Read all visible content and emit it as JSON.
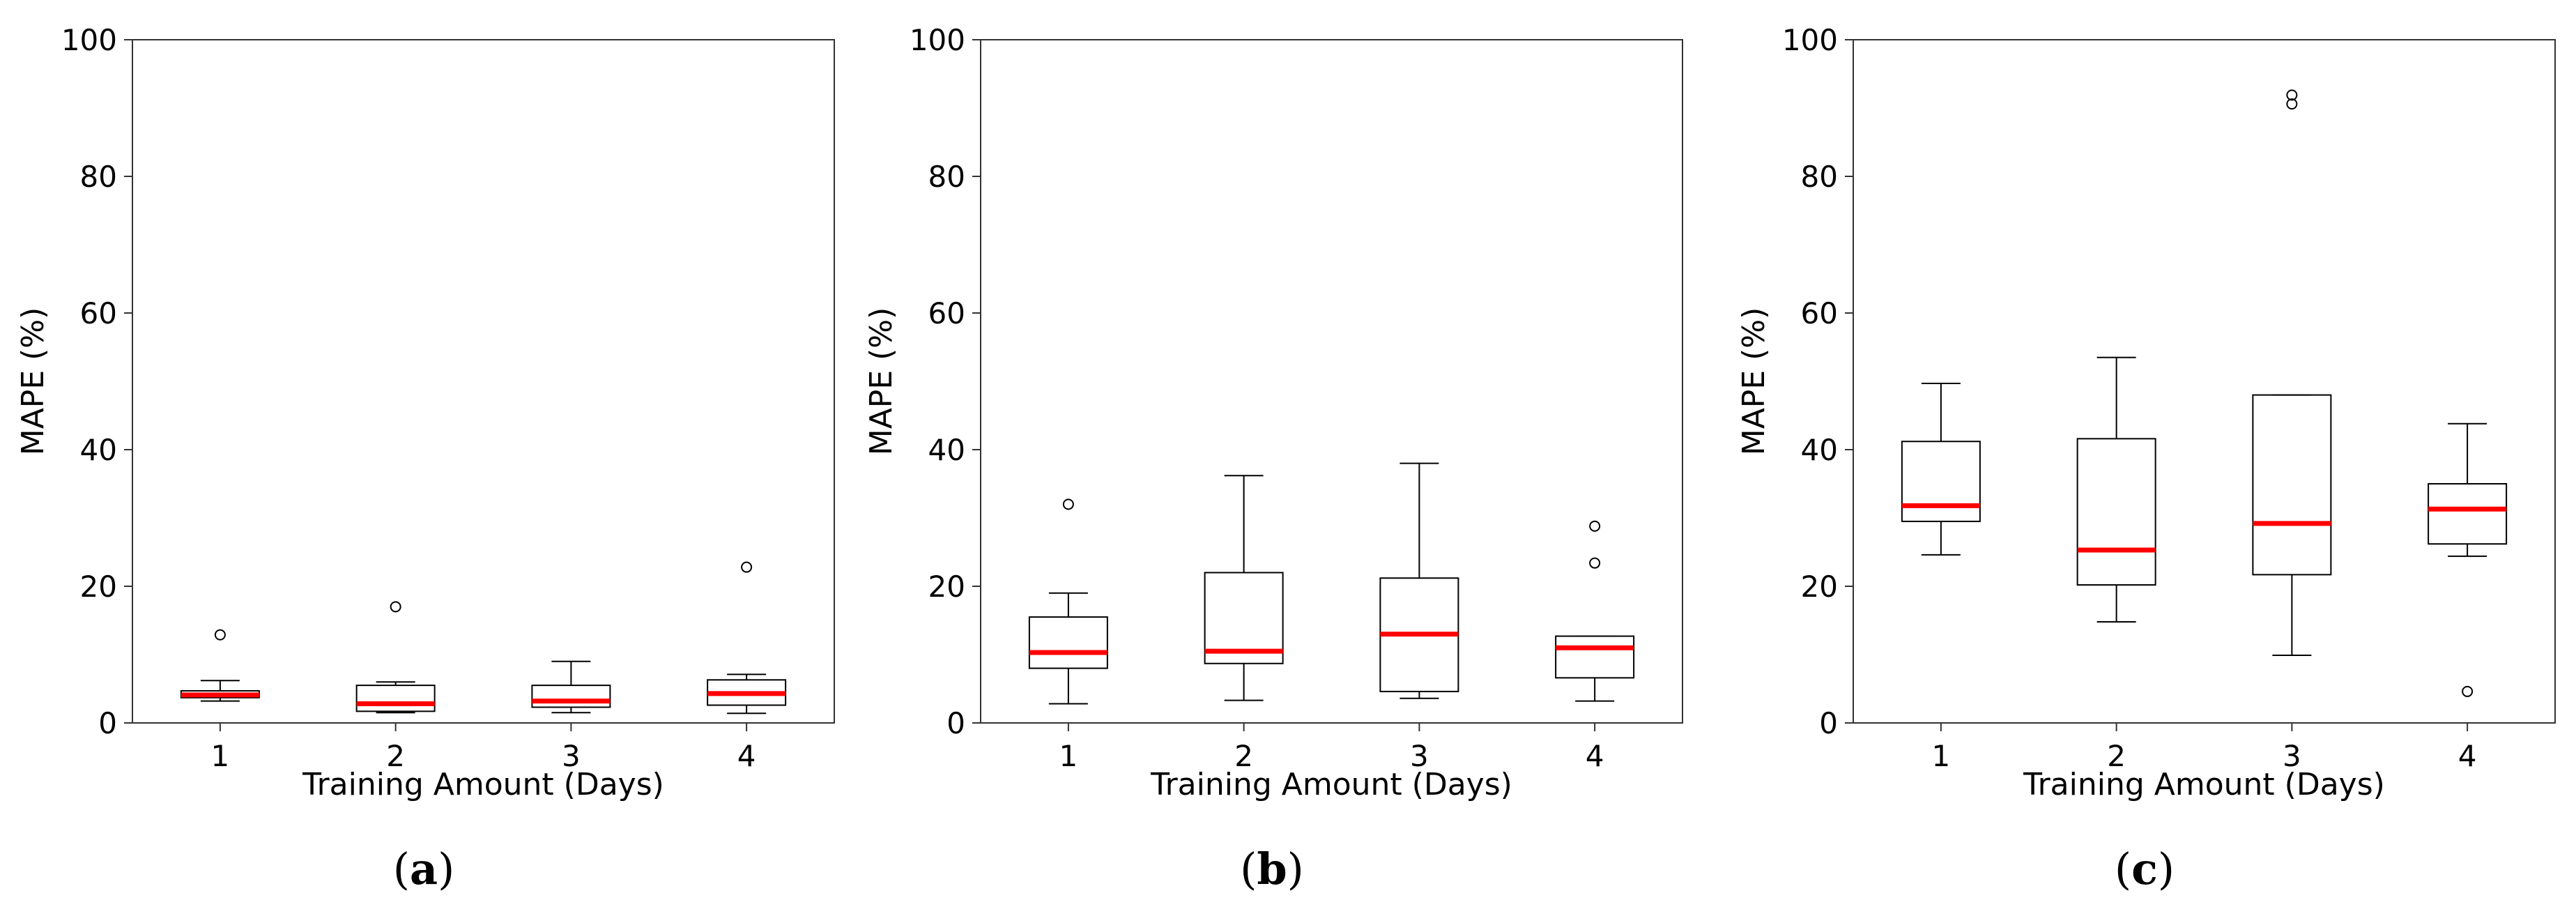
{
  "figure": {
    "panel_labels": [
      {
        "open": "(",
        "letter": "a",
        "close": ")"
      },
      {
        "open": "(",
        "letter": "b",
        "close": ")"
      },
      {
        "open": "(",
        "letter": "c",
        "close": ")"
      }
    ]
  },
  "colors": {
    "median": "#ff0000",
    "box": "#000000",
    "axes": "#333333"
  },
  "chart_data": [
    {
      "type": "box",
      "panel": "a",
      "xlabel": "Training Amount (Days)",
      "ylabel": "MAPE (%)",
      "ylim": [
        0,
        100
      ],
      "yticks": [
        0,
        20,
        40,
        60,
        80,
        100
      ],
      "categories": [
        "1",
        "2",
        "3",
        "4"
      ],
      "boxes": [
        {
          "whislo": 3.2,
          "q1": 3.7,
          "med": 4.1,
          "q3": 4.7,
          "whishi": 6.2,
          "fliers": [
            12.9
          ]
        },
        {
          "whislo": 1.5,
          "q1": 1.7,
          "med": 2.8,
          "q3": 5.5,
          "whishi": 6.0,
          "fliers": [
            17.0
          ]
        },
        {
          "whislo": 1.5,
          "q1": 2.3,
          "med": 3.2,
          "q3": 5.5,
          "whishi": 9.0,
          "fliers": []
        },
        {
          "whislo": 1.4,
          "q1": 2.6,
          "med": 4.3,
          "q3": 6.3,
          "whishi": 7.1,
          "fliers": [
            22.8
          ]
        }
      ]
    },
    {
      "type": "box",
      "panel": "b",
      "xlabel": "Training Amount (Days)",
      "ylabel": "MAPE (%)",
      "ylim": [
        0,
        100
      ],
      "yticks": [
        0,
        20,
        40,
        60,
        80,
        100
      ],
      "categories": [
        "1",
        "2",
        "3",
        "4"
      ],
      "boxes": [
        {
          "whislo": 2.8,
          "q1": 8.0,
          "med": 10.3,
          "q3": 15.5,
          "whishi": 19.0,
          "fliers": [
            32.0
          ]
        },
        {
          "whislo": 3.3,
          "q1": 8.7,
          "med": 10.5,
          "q3": 22.0,
          "whishi": 36.2,
          "fliers": []
        },
        {
          "whislo": 3.6,
          "q1": 4.6,
          "med": 13.0,
          "q3": 21.2,
          "whishi": 38.0,
          "fliers": []
        },
        {
          "whislo": 3.2,
          "q1": 6.6,
          "med": 11.0,
          "q3": 12.7,
          "whishi": 12.7,
          "fliers": [
            23.4,
            28.8
          ]
        }
      ]
    },
    {
      "type": "box",
      "panel": "c",
      "xlabel": "Training Amount (Days)",
      "ylabel": "MAPE (%)",
      "ylim": [
        0,
        100
      ],
      "yticks": [
        0,
        20,
        40,
        60,
        80,
        100
      ],
      "categories": [
        "1",
        "2",
        "3",
        "4"
      ],
      "boxes": [
        {
          "whislo": 24.6,
          "q1": 29.5,
          "med": 31.8,
          "q3": 41.2,
          "whishi": 49.7,
          "fliers": []
        },
        {
          "whislo": 14.8,
          "q1": 20.2,
          "med": 25.3,
          "q3": 41.6,
          "whishi": 53.5,
          "fliers": []
        },
        {
          "whislo": 9.9,
          "q1": 21.7,
          "med": 29.2,
          "q3": 48.0,
          "whishi": 48.0,
          "fliers": [
            90.6,
            91.9
          ]
        },
        {
          "whislo": 24.4,
          "q1": 26.2,
          "med": 31.3,
          "q3": 35.0,
          "whishi": 43.8,
          "fliers": [
            4.6
          ]
        }
      ]
    }
  ]
}
